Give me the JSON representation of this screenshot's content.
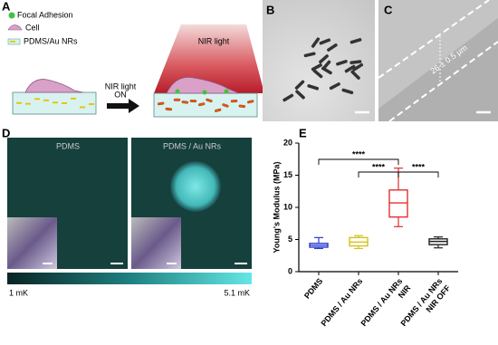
{
  "panel_labels": [
    "A",
    "B",
    "C",
    "D",
    "E"
  ],
  "panel_a": {
    "legend": [
      "Focal Adhesion",
      "Cell",
      "PDMS/Au NRs"
    ],
    "arrow_label": [
      "NIR light",
      "ON"
    ],
    "beam_label": "NIR light"
  },
  "panel_c": {
    "measurement": "26 ± 0.5 µm"
  },
  "panel_d": {
    "titles": [
      "PDMS",
      "PDMS / Au NRs"
    ],
    "colorbar": [
      "1 mK",
      "5.1 mK"
    ]
  },
  "chart_data": {
    "type": "box",
    "y_label": "Young's Modulus (MPa)",
    "categories": [
      [
        "PDMS"
      ],
      [
        "PDMS / Au NRs"
      ],
      [
        "PDMS / Au NRs",
        "NIR"
      ],
      [
        "PDMS / Au NRs",
        "NIR OFF"
      ]
    ],
    "colors": [
      "#2a3bd0",
      "#d4c21a",
      "#e23030",
      "#222222"
    ],
    "boxes": [
      {
        "min": 3.6,
        "q1": 3.8,
        "median": 4.1,
        "q3": 4.4,
        "max": 5.3
      },
      {
        "min": 3.6,
        "q1": 4.0,
        "median": 4.6,
        "q3": 5.3,
        "max": 5.6
      },
      {
        "min": 7.0,
        "q1": 8.5,
        "median": 10.7,
        "q3": 12.7,
        "max": 16.1
      },
      {
        "min": 3.7,
        "q1": 4.2,
        "median": 4.7,
        "q3": 5.1,
        "max": 5.4
      }
    ],
    "ylim": [
      0,
      20
    ],
    "yticks": [
      0,
      5,
      10,
      15,
      20
    ],
    "significance": [
      "****",
      "****",
      "****"
    ]
  }
}
